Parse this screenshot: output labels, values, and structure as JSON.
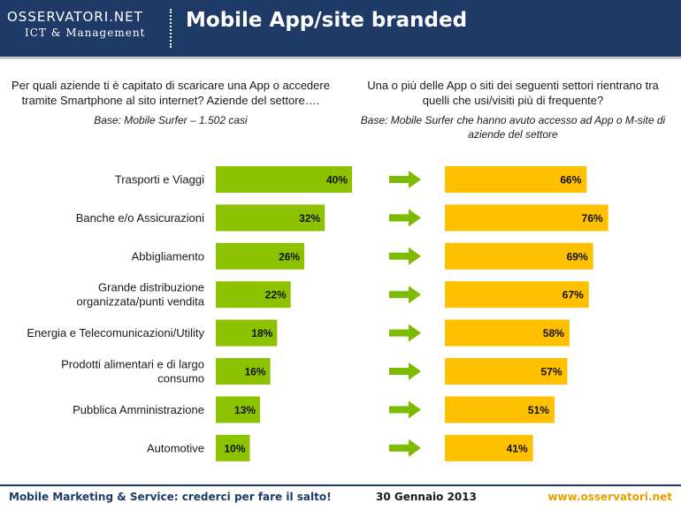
{
  "header": {
    "logo_top": "OSSERVATORI.NET",
    "logo_bottom": "ICT & Management",
    "title": "Mobile App/site branded",
    "colors": {
      "background": "#1f3a66",
      "text": "#ffffff"
    }
  },
  "left_panel": {
    "question": "Per quali aziende ti è capitato di scaricare una App o accedere tramite Smartphone al sito internet? Aziende del settore….",
    "base": "Base: Mobile Surfer – 1.502 casi"
  },
  "right_panel": {
    "question": "Una o più delle App o siti dei seguenti settori rientrano tra quelli che usi/visiti più di frequente?",
    "base": "Base: Mobile Surfer che hanno avuto accesso ad App o M-site di aziende del settore"
  },
  "chart_data": {
    "type": "bar",
    "orientation": "horizontal",
    "categories": [
      "Trasporti e Viaggi",
      "Banche e/o Assicurazioni",
      "Abbigliamento",
      "Grande distribuzione organizzata/punti vendita",
      "Energia e Telecomunicazioni/Utility",
      "Prodotti alimentari e di largo consumo",
      "Pubblica Amministrazione",
      "Automotive"
    ],
    "category_lines": [
      [
        "Trasporti e Viaggi"
      ],
      [
        "Banche e/o Assicurazioni"
      ],
      [
        "Abbigliamento"
      ],
      [
        "Grande distribuzione",
        "organizzata/punti vendita"
      ],
      [
        "Energia e Telecomunicazioni/Utility"
      ],
      [
        "Prodotti alimentari e di largo",
        "consumo"
      ],
      [
        "Pubblica Amministrazione"
      ],
      [
        "Automotive"
      ]
    ],
    "series": [
      {
        "values": [
          40,
          32,
          26,
          22,
          18,
          16,
          13,
          10
        ],
        "labels": [
          "40%",
          "32%",
          "26%",
          "22%",
          "18%",
          "16%",
          "13%",
          "10%"
        ],
        "color": "#8cc200"
      },
      {
        "values": [
          66,
          76,
          69,
          67,
          58,
          57,
          51,
          41
        ],
        "labels": [
          "66%",
          "76%",
          "69%",
          "67%",
          "58%",
          "57%",
          "51%",
          "41%"
        ],
        "color": "#ffc000"
      }
    ],
    "arrow_color": "#7dbb00",
    "unit": "%",
    "grid": false,
    "legend": "none"
  },
  "footer": {
    "left": "Mobile Marketing & Service: crederci per fare il salto!",
    "center": "30 Gennaio 2013",
    "right": "www.osservatori.net"
  }
}
